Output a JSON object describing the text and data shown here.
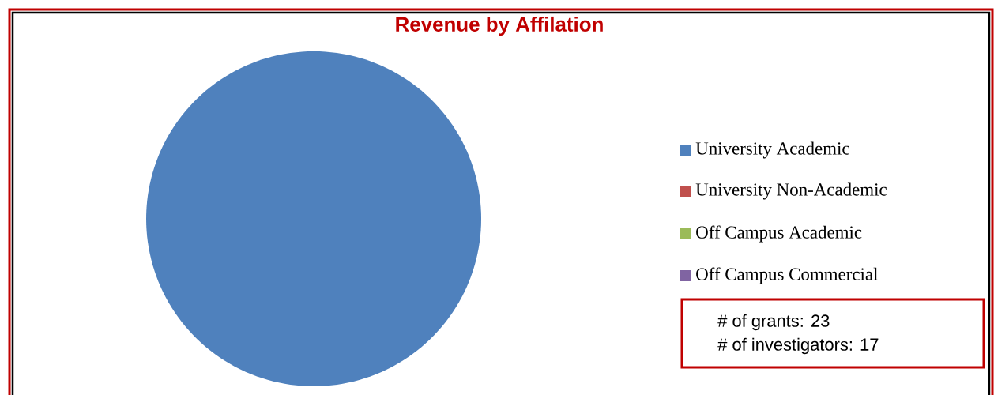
{
  "chart_data": {
    "type": "pie",
    "title": "Revenue by Affilation",
    "categories": [
      "University Academic",
      "University Non-Academic",
      "Off Campus Academic",
      "Off Campus Commercial"
    ],
    "values": [
      100,
      0,
      0,
      0
    ],
    "colors": [
      "#4f81bd",
      "#c0504d",
      "#9bbb59",
      "#8064a2"
    ],
    "legend": "right",
    "annotations": [
      "# of grants:  23",
      "# of investigators:  17"
    ]
  }
}
